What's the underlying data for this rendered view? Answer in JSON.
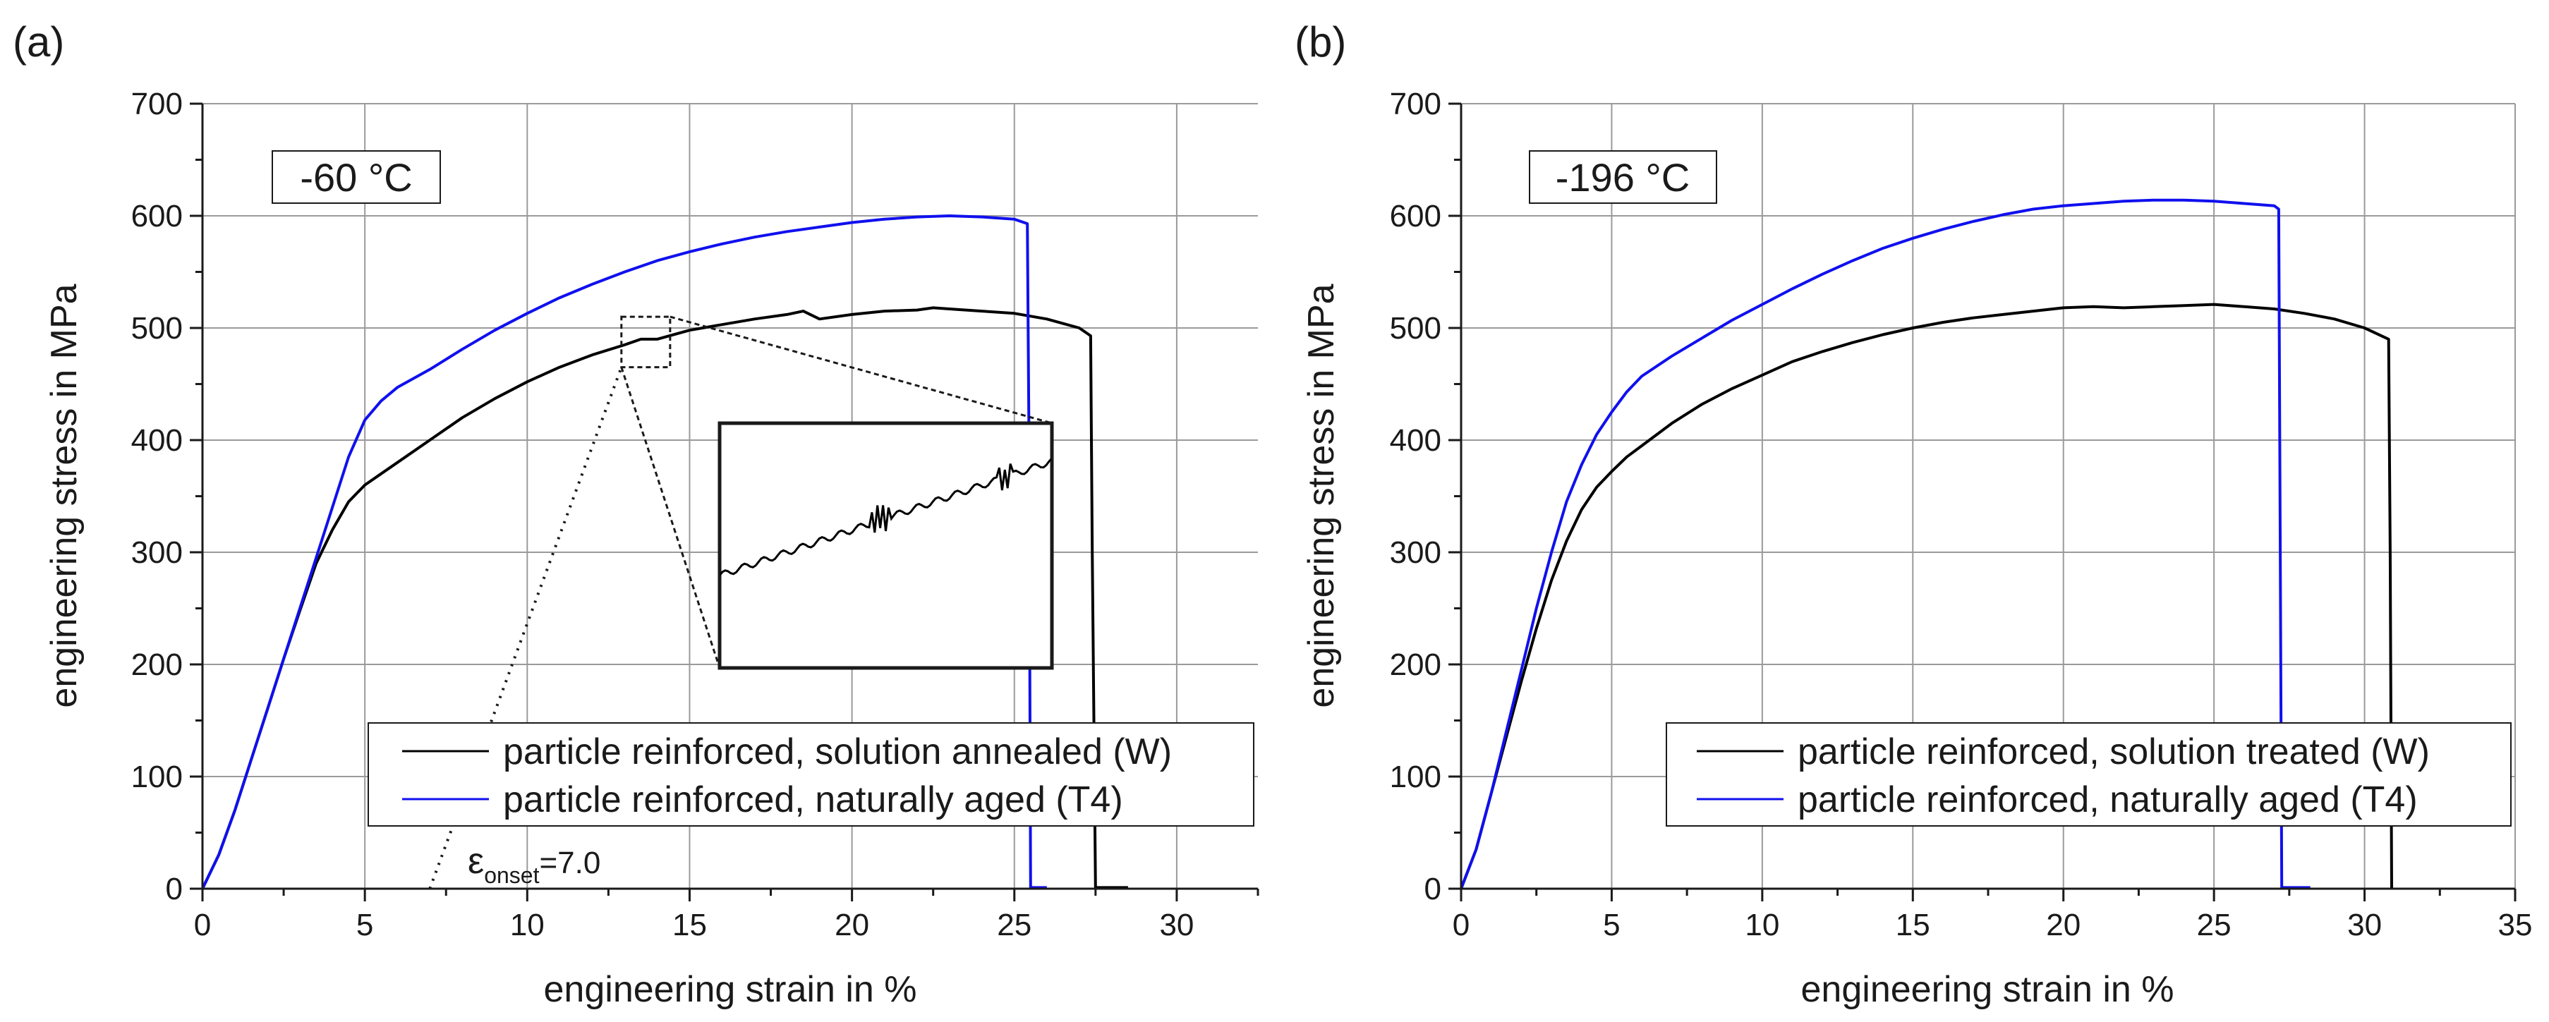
{
  "chart_data": [
    {
      "type": "line",
      "panel_label": "(a)",
      "annotation": "-60 °C",
      "xlabel": "engineering strain in %",
      "ylabel": "engineering stress in MPa",
      "xlim": [
        0,
        32.5
      ],
      "ylim": [
        0,
        700
      ],
      "xticks": [
        0,
        5,
        10,
        15,
        20,
        25,
        30
      ],
      "yticks": [
        0,
        100,
        200,
        300,
        400,
        500,
        600,
        700
      ],
      "grid": true,
      "legend_position": "bottom-right",
      "onset_label": {
        "symbol": "ε",
        "subscript": "onset",
        "value": "=7.0"
      },
      "onset_strain": 7.0,
      "inset_zoom": {
        "x_range": [
          12.9,
          14.4
        ],
        "y_range": [
          465,
          510
        ]
      },
      "series": [
        {
          "name": "particle reinforced, solution annealed (W)",
          "color": "#000000",
          "x": [
            0,
            0.5,
            1,
            1.5,
            2,
            2.5,
            3,
            3.5,
            4,
            4.5,
            5,
            5.5,
            6,
            7,
            8,
            9,
            10,
            11,
            12,
            13,
            13.5,
            14,
            15,
            16,
            17,
            18,
            18.5,
            19,
            20,
            21,
            22,
            22.5,
            23,
            24,
            25,
            26,
            27,
            27.35,
            27.4,
            27.5,
            28.5
          ],
          "y": [
            0,
            30,
            70,
            115,
            160,
            205,
            248,
            290,
            320,
            345,
            360,
            370,
            380,
            400,
            420,
            437,
            452,
            465,
            476,
            485,
            490,
            490,
            498,
            503,
            508,
            512,
            515,
            508,
            512,
            515,
            516,
            518,
            517,
            515,
            513,
            508,
            500,
            493,
            300,
            1,
            1
          ]
        },
        {
          "name": "particle reinforced, naturally aged (T4)",
          "color": "#1010ee",
          "x": [
            0,
            0.5,
            1,
            1.5,
            2,
            2.5,
            3,
            3.5,
            4,
            4.5,
            5,
            5.5,
            6,
            7,
            8,
            9,
            10,
            11,
            12,
            13,
            14,
            15,
            16,
            17,
            18,
            19,
            20,
            21,
            22,
            23,
            24,
            25,
            25.4,
            25.45,
            25.5,
            26
          ],
          "y": [
            0,
            30,
            70,
            115,
            160,
            205,
            250,
            295,
            340,
            385,
            418,
            435,
            447,
            463,
            481,
            498,
            513,
            527,
            539,
            550,
            560,
            568,
            575,
            581,
            586,
            590,
            594,
            597,
            599,
            600,
            599,
            597,
            593,
            400,
            1,
            1
          ]
        }
      ]
    },
    {
      "type": "line",
      "panel_label": "(b)",
      "annotation": "-196 °C",
      "xlabel": "engineering strain in %",
      "ylabel": "engineering stress in MPa",
      "xlim": [
        0,
        35
      ],
      "ylim": [
        0,
        700
      ],
      "xticks": [
        0,
        5,
        10,
        15,
        20,
        25,
        30,
        35
      ],
      "yticks": [
        0,
        100,
        200,
        300,
        400,
        500,
        600,
        700
      ],
      "grid": true,
      "legend_position": "bottom-right",
      "series": [
        {
          "name": "particle reinforced, solution treated (W)",
          "color": "#000000",
          "x": [
            0,
            0.5,
            1,
            1.5,
            2,
            2.5,
            3,
            3.5,
            4,
            4.5,
            5,
            5.5,
            6,
            7,
            8,
            9,
            10,
            11,
            12,
            13,
            14,
            15,
            16,
            17,
            18,
            19,
            20,
            21,
            22,
            23,
            24,
            25,
            26,
            27,
            28,
            29,
            30,
            30.8,
            30.85,
            30.9
          ],
          "y": [
            0,
            35,
            85,
            135,
            185,
            232,
            275,
            310,
            338,
            358,
            372,
            385,
            395,
            415,
            432,
            446,
            458,
            470,
            479,
            487,
            494,
            500,
            505,
            509,
            512,
            515,
            518,
            519,
            518,
            519,
            520,
            521,
            519,
            517,
            513,
            508,
            500,
            490,
            300,
            0
          ]
        },
        {
          "name": "particle reinforced, naturally aged (T4)",
          "color": "#1010ee",
          "x": [
            0,
            0.5,
            1,
            1.5,
            2,
            2.5,
            3,
            3.5,
            4,
            4.5,
            5,
            5.5,
            6,
            7,
            8,
            9,
            10,
            11,
            12,
            13,
            14,
            15,
            16,
            17,
            18,
            19,
            20,
            21,
            22,
            23,
            24,
            25,
            26,
            27,
            27.15,
            27.2,
            27.25,
            28.2
          ],
          "y": [
            0,
            35,
            85,
            140,
            195,
            250,
            300,
            345,
            378,
            405,
            425,
            443,
            457,
            475,
            491,
            507,
            521,
            535,
            548,
            560,
            571,
            580,
            588,
            595,
            601,
            606,
            609,
            611,
            613,
            614,
            614,
            613,
            611,
            609,
            606,
            300,
            1,
            1
          ]
        }
      ]
    }
  ]
}
